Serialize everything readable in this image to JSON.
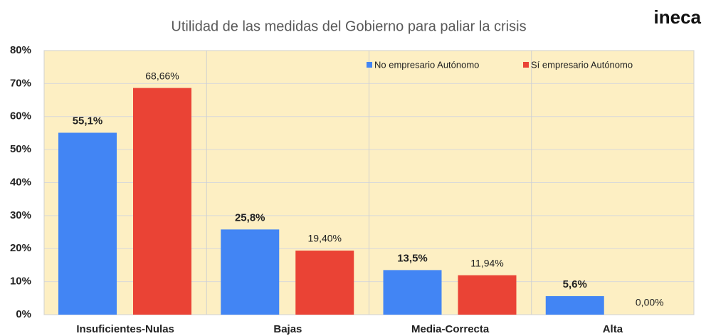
{
  "chart_data": {
    "type": "bar",
    "title": "Utilidad de las medidas del Gobierno para paliar la crisis",
    "brand": "ineca",
    "categories": [
      "Insuficientes-Nulas",
      "Bajas",
      "Media-Correcta",
      "Alta"
    ],
    "series": [
      {
        "name": "No empresario Autónomo",
        "color": "#4285f4",
        "values": [
          55.1,
          25.8,
          13.5,
          5.6
        ],
        "value_labels": [
          "55,1%",
          "25,8%",
          "13,5%",
          "5,6%"
        ]
      },
      {
        "name": "Sí empresario Autónomo",
        "color": "#ea4335",
        "values": [
          68.66,
          19.4,
          11.94,
          0.0
        ],
        "value_labels": [
          "68,66%",
          "19,40%",
          "11,94%",
          "0,00%"
        ]
      }
    ],
    "ylim": [
      0,
      80
    ],
    "yticks": [
      {
        "value": 0,
        "label": "0%"
      },
      {
        "value": 10,
        "label": "10%"
      },
      {
        "value": 20,
        "label": "20%"
      },
      {
        "value": 30,
        "label": "30%"
      },
      {
        "value": 40,
        "label": "40%"
      },
      {
        "value": 50,
        "label": "50%"
      },
      {
        "value": 60,
        "label": "60%"
      },
      {
        "value": 70,
        "label": "70%"
      },
      {
        "value": 80,
        "label": "80%"
      }
    ],
    "grid": true,
    "legend": "top-right",
    "background": "#fdefc3"
  }
}
